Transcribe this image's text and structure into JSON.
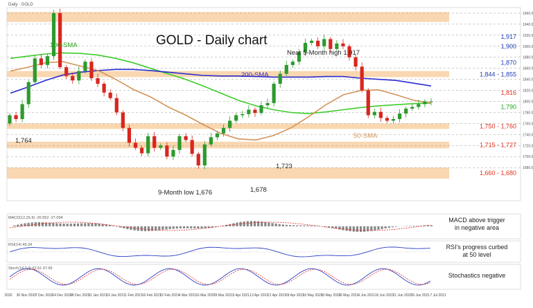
{
  "window_label": "Daily · GOLD",
  "chart_data": {
    "type": "candlestick",
    "title": "GOLD - Daily chart",
    "ylim": [
      1620,
      1970
    ],
    "x_ticks": [
      "2020",
      "30 Nov 2020",
      "7 Dec 2020",
      "14 Dec 2020",
      "28 Dec 2020",
      "11 Jan 2021",
      "19 Jan 2021",
      "1 Feb 2021",
      "16 Feb 2021",
      "22 Feb 2021",
      "4 Mar 2021",
      "16 Mar 2021",
      "29 Mar 2021",
      "5 Apr 2021",
      "13 Apr 2021",
      "21 Apr 2021",
      "28 Apr 2021",
      "10 May 2021",
      "18 May 2021",
      "26 May 2021",
      "4 Jun 2021",
      "10 Jun 2021",
      "21 Jun 2021",
      "28 Jun 2021",
      "7 Jul 2021"
    ],
    "y_ticks": [
      1680,
      1700,
      1720,
      1740,
      1760,
      1780,
      1800,
      1820,
      1840,
      1860,
      1880,
      1900,
      1920,
      1940,
      1960
    ],
    "level_labels": [
      {
        "text": "1,917",
        "value": 1917,
        "color": "#1f3fb4"
      },
      {
        "text": "1,900",
        "value": 1900,
        "color": "#1f3fb4"
      },
      {
        "text": "1,870",
        "value": 1870,
        "color": "#1f3fb4"
      },
      {
        "text": "1,844 - 1,855",
        "value": 1849,
        "color": "#1f3fb4"
      },
      {
        "text": "1,816",
        "value": 1816,
        "color": "#e0301e"
      },
      {
        "text": "1,790",
        "value": 1790,
        "color": "#1aa81a"
      },
      {
        "text": "1,750 - 1,760",
        "value": 1755,
        "color": "#e0301e"
      },
      {
        "text": "1,715 - 1,727",
        "value": 1721,
        "color": "#e0301e"
      },
      {
        "text": "1,660 - 1,680",
        "value": 1670,
        "color": "#e0301e"
      }
    ],
    "zones": [
      [
        1944,
        1962
      ],
      [
        1844,
        1855
      ],
      [
        1750,
        1760
      ],
      [
        1715,
        1727
      ],
      [
        1660,
        1680
      ]
    ],
    "annotations": {
      "sma100": "100-SMA",
      "sma200": "200-SMA",
      "sma50": "50-SMA",
      "high": "Near 5-Month high 1,917",
      "low9m": "9-Month low 1,676",
      "low1678": "1,678",
      "v1723": "1,723",
      "v1764": "1,764"
    },
    "series": [
      {
        "name": "100-SMA",
        "color": "#3ccc2a",
        "values": [
          1878,
          1882,
          1886,
          1888,
          1887,
          1884,
          1878,
          1870,
          1860,
          1850,
          1840,
          1828,
          1815,
          1802,
          1792,
          1785,
          1780,
          1778,
          1781,
          1785,
          1789,
          1792,
          1794,
          1796,
          1797
        ]
      },
      {
        "name": "200-SMA",
        "color": "#2a2ad0",
        "values": [
          1815,
          1826,
          1838,
          1848,
          1853,
          1856,
          1858,
          1858,
          1856,
          1853,
          1850,
          1847,
          1846,
          1846,
          1845,
          1844,
          1844,
          1844,
          1845,
          1845,
          1842,
          1840,
          1838,
          1833,
          1828
        ]
      },
      {
        "name": "50-SMA",
        "color": "#d2945a",
        "values": [
          1855,
          1862,
          1870,
          1872,
          1864,
          1856,
          1840,
          1822,
          1808,
          1790,
          1775,
          1758,
          1742,
          1732,
          1730,
          1738,
          1752,
          1772,
          1794,
          1812,
          1820,
          1821,
          1812,
          1802,
          1797
        ]
      }
    ],
    "close": [
      1775,
      1768,
      1795,
      1835,
      1878,
      1866,
      1882,
      1960,
      1862,
      1846,
      1838,
      1855,
      1872,
      1842,
      1832,
      1816,
      1806,
      1780,
      1752,
      1725,
      1716,
      1706,
      1737,
      1716,
      1720,
      1700,
      1712,
      1737,
      1730,
      1705,
      1684,
      1722,
      1735,
      1742,
      1752,
      1765,
      1775,
      1777,
      1785,
      1779,
      1793,
      1797,
      1832,
      1850,
      1866,
      1872,
      1889,
      1906,
      1910,
      1900,
      1913,
      1895,
      1905,
      1900,
      1880,
      1863,
      1820,
      1775,
      1781,
      1770,
      1765,
      1768,
      1778,
      1787,
      1790,
      1795,
      1800,
      1800
    ]
  },
  "indicators": {
    "macd": {
      "header": "MACD(12,26,9) -20.552 -27.094",
      "text": "MACD above trigger in negative area"
    },
    "rsi": {
      "header": "RSI(14) 49.34",
      "text": "RSI's progress curbed at 50 level"
    },
    "stoch": {
      "header": "Stoch(14,3,3) 62.61 67.65",
      "text": "Stochastics negative"
    }
  }
}
